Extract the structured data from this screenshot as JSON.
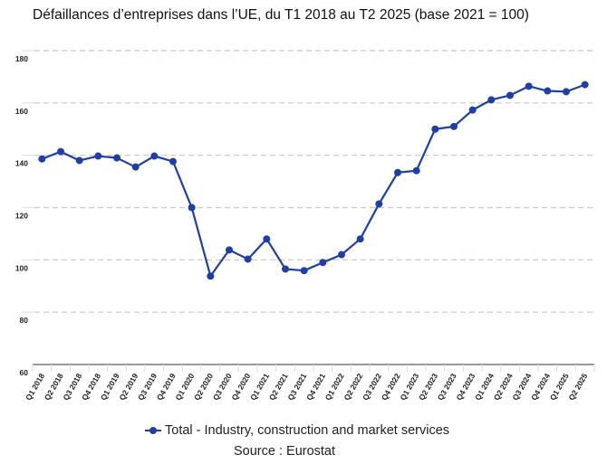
{
  "chart_data": {
    "type": "line",
    "title": "Défaillances d’entreprises dans l’UE, du T1 2018 au T2 2025 (base 2021 = 100)",
    "xlabel": "",
    "ylabel": "",
    "ylim": [
      60,
      180
    ],
    "yticks": [
      60,
      80,
      100,
      120,
      140,
      160,
      180
    ],
    "ytick_labels": [
      "60",
      "80",
      "100",
      "120",
      "140",
      "160",
      "180"
    ],
    "grid": true,
    "legend_position": "bottom",
    "categories": [
      "Q1 2018",
      "Q2 2018",
      "Q3 2018",
      "Q4 2018",
      "Q1 2019",
      "Q2 2019",
      "Q3 2019",
      "Q4 2019",
      "Q1 2020",
      "Q2 2020",
      "Q3 2020",
      "Q4 2020",
      "Q1 2021",
      "Q2 2021",
      "Q3 2021",
      "Q4 2021",
      "Q1 2022",
      "Q2 2022",
      "Q3 2022",
      "Q4 2022",
      "Q1 2023",
      "Q2 2023",
      "Q3 2023",
      "Q4 2023",
      "Q1 2024",
      "Q2 2024",
      "Q3 2024",
      "Q4 2024",
      "Q1 2025",
      "Q2 2025"
    ],
    "series": [
      {
        "name": "Total - Industry, construction and market services",
        "color": "#1f3fa8",
        "values": [
          138.6,
          141.4,
          138.0,
          139.7,
          139.0,
          135.5,
          139.7,
          137.6,
          120.0,
          93.8,
          103.8,
          100.3,
          108.0,
          96.5,
          95.9,
          99.0,
          102.0,
          108.0,
          121.4,
          133.4,
          134.1,
          150.0,
          151.0,
          157.3,
          161.2,
          162.9,
          166.4,
          164.6,
          164.3,
          167.0
        ]
      }
    ],
    "source": "Source : Eurostat"
  }
}
